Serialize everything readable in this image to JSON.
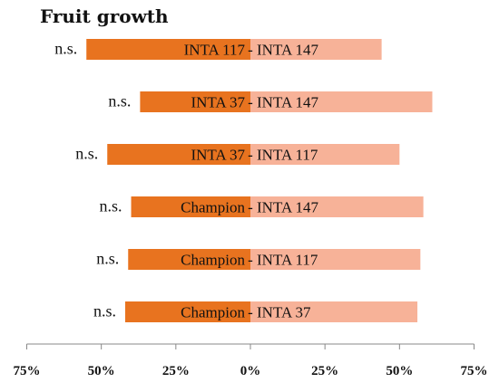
{
  "chart_data": {
    "type": "bar",
    "orientation": "horizontal-diverging",
    "title": "Fruit growth",
    "xlabel": "",
    "ylabel": "",
    "xlim": [
      -75,
      75
    ],
    "x_ticks": [
      -75,
      -50,
      -25,
      0,
      25,
      50,
      75
    ],
    "x_tick_labels": [
      "75%",
      "50%",
      "25%",
      "0%",
      "25%",
      "50%",
      "75%"
    ],
    "grid": false,
    "categories": [
      "INTA 117 - INTA 147",
      "INTA 37 - INTA 147",
      "INTA 37 - INTA 117",
      "Champion - INTA 147",
      "Champion - INTA 117",
      "Champion - INTA 37"
    ],
    "series": [
      {
        "color": "#e8731f",
        "values": [
          -55,
          -37,
          -48,
          -40,
          -41,
          -42
        ],
        "labels": [
          "INTA 117",
          "INTA 37",
          "INTA 37",
          "Champion",
          "Champion",
          "Champion"
        ]
      },
      {
        "color": "#f7b298",
        "values": [
          44,
          61,
          50,
          58,
          57,
          56
        ],
        "labels": [
          "INTA 147",
          "INTA 147",
          "INTA 117",
          "INTA 147",
          "INTA 117",
          "INTA 37"
        ]
      }
    ],
    "separator": "-",
    "significance": [
      "n.s.",
      "n.s.",
      "n.s.",
      "n.s.",
      "n.s.",
      "n.s."
    ]
  }
}
